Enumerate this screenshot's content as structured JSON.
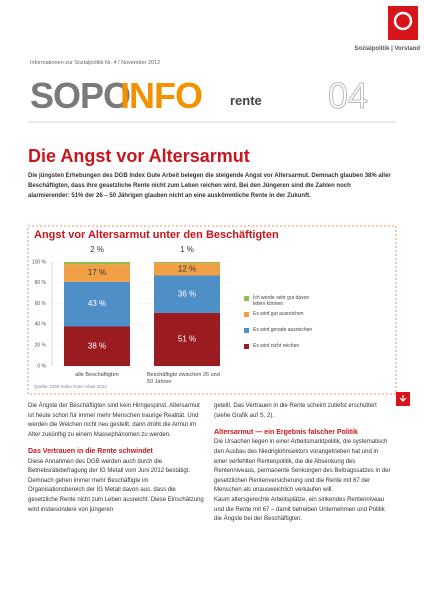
{
  "header": {
    "logo_caption": "Sozialpolitik | Vorstand",
    "kicker": "Informationen zur Sozialpolitik Nr. 4 / November 2012",
    "brand_1": "SOPO",
    "brand_2": "INFO",
    "topic": "rente",
    "issue": "04"
  },
  "article": {
    "title": "Die Angst vor Altersarmut",
    "intro": "Die jüngsten Erhebungen des DGB Index Gute Arbeit belegen die steigende Angst vor Altersarmut. Demnach glauben 38% aller Beschäftigten, dass ihre gesetzliche Rente nicht zum Leben reichen wird. Bei den Jüngeren sind die Zahlen noch alarmierender: 51% der 26 – 50 Jährigen glauben nicht an eine auskömmliche Rente in der Zukunft."
  },
  "chart": {
    "type": "bar",
    "stacked": true,
    "title": "Angst vor Altersarmut unter den Beschäftigten",
    "categories": [
      "alle Beschäftigten",
      "Beschäftigte zwischen 26 und 50 Jahren"
    ],
    "series": [
      {
        "name": "Es wird nicht reichen",
        "color": "#9b1c20",
        "values": [
          38,
          51
        ],
        "value_labels": [
          "38 %",
          "51 %"
        ]
      },
      {
        "name": "Es wird gerade ausreichen",
        "color": "#4f8fc8",
        "values": [
          43,
          36
        ],
        "value_labels": [
          "43 %",
          "36 %"
        ]
      },
      {
        "name": "Es wird gut ausreichen",
        "color": "#f2a046",
        "values": [
          17,
          12
        ],
        "value_labels": [
          "17 %",
          "12 %"
        ]
      },
      {
        "name": "Ich werde sehr gut davon leben können",
        "color": "#8cc152",
        "values": [
          2,
          1
        ],
        "value_labels": [
          "2 %",
          "1 %"
        ]
      }
    ],
    "ylim": [
      0,
      100
    ],
    "yticks": [
      {
        "value": 0,
        "label": "0 %"
      },
      {
        "value": 20,
        "label": "20 %"
      },
      {
        "value": 40,
        "label": "40 %"
      },
      {
        "value": 60,
        "label": "60 %"
      },
      {
        "value": 80,
        "label": "80 %"
      },
      {
        "value": 100,
        "label": "100 %"
      }
    ],
    "grid": true,
    "source": "Quelle: DGB-Index Gute Arbeit 2012"
  },
  "columns": [
    {
      "blocks": [
        {
          "kind": "text",
          "text": "Die Ängste der Beschäftigten sind kein Hirngespinst. Altersarmut ist heute schon für immer mehr Menschen traurige Realität. Und werden die Weichen nicht neu gestellt, dann droht die Armut im Alter zukünftig zu einem Massephänomen zu werden."
        },
        {
          "kind": "heading",
          "text": "Das Vertrauen in die Rente schwindet"
        },
        {
          "kind": "text",
          "text": "Diese Annahmen des DGB werden auch durch die Betriebsrätebefragung der IG Metall vom Juni 2012 bestätigt. Demnach gehen immer mehr Beschäftigte im Organisationsbereich der IG Metall davon aus, dass die gesetzliche Rente nicht zum Leben ausreicht. Diese Einschätzung wird insbesondere von jüngeren"
        }
      ]
    },
    {
      "blocks": [
        {
          "kind": "text",
          "text": "geteilt. Das Vertrauen in die Rente scheint zutiefst erschüttert (siehe Grafik auf S. 2)."
        },
        {
          "kind": "heading",
          "text": "Altersarmut — ein Ergebnis falscher Politik"
        },
        {
          "kind": "text",
          "text": "Die Ursachen liegen in einer Arbeitsmarktpolitik, die systematisch den Ausbau des Niedriglohnsektors vorangetrieben hat und in einer verfehlten Rentenpolitik, die die Absenkung des Rentenniveaus, permanente Senkungen des Beitragssatzes in der gesetzlichen Rentenversicherung und die Rente mit 67 der Menschen als unausweichlich verkaufen will."
        },
        {
          "kind": "text",
          "text": "Kaum altersgerechte Arbeitsplätze, ein sinkendes Rentenniveau und die Rente mit 67 – damit betreiben Unternehmen und Politik die Ängste bei der Beschäftigten."
        }
      ]
    }
  ]
}
